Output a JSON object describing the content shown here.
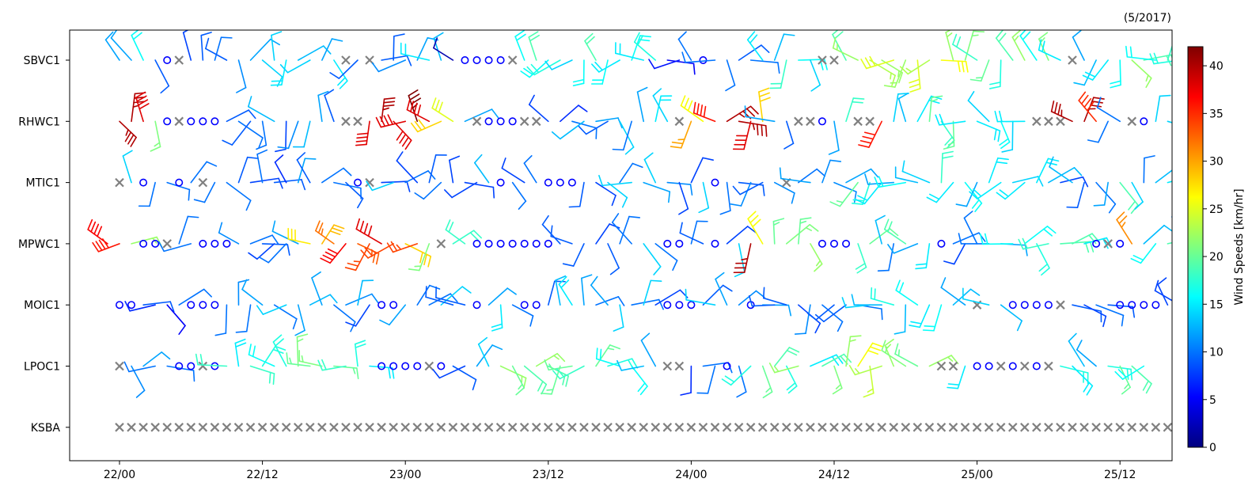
{
  "chart_data": {
    "type": "wind-barbs",
    "title_right": "(5/2017)",
    "stations": [
      "SBVC1",
      "RHWC1",
      "MTIC1",
      "MPWC1",
      "MOIC1",
      "LPOC1",
      "KSBA"
    ],
    "x_ticks": [
      "22/00",
      "22/12",
      "23/00",
      "23/12",
      "24/00",
      "24/12",
      "25/00",
      "25/12"
    ],
    "x_range_hours": [
      -4,
      88
    ],
    "time_step_hours": 1,
    "colorbar": {
      "label": "Wind Speeds [km/hr]",
      "ticks": [
        0,
        5,
        10,
        15,
        20,
        25,
        30,
        35,
        40
      ],
      "range": [
        0,
        42
      ],
      "colormap": "jet"
    },
    "legend_markers": {
      "calm": "circle",
      "missing": "x",
      "missing_color": "#808080"
    },
    "observations": {
      "SBVC1": {
        "start_hour": 0,
        "speeds": [
          12,
          12,
          16,
          9,
          0,
          -1,
          8,
          9,
          10,
          9,
          11,
          12,
          14,
          14,
          15,
          13,
          14,
          12,
          15,
          -1,
          9,
          -1,
          9,
          9,
          11,
          12,
          15,
          13,
          2,
          0,
          0,
          0,
          0,
          -1,
          16,
          19,
          16,
          17,
          14,
          16,
          19,
          16,
          15,
          16,
          15,
          17,
          5,
          6,
          10,
          0,
          10,
          10,
          9,
          10,
          15,
          13,
          18,
          16,
          14,
          -1,
          -1,
          19,
          22,
          23,
          22,
          25,
          22,
          25,
          23,
          26,
          22,
          21,
          18,
          20,
          17,
          19,
          22,
          16,
          21,
          15,
          -1,
          12,
          13,
          15,
          16,
          22,
          19,
          16,
          18,
          17,
          20,
          0,
          0,
          -1,
          -1,
          12,
          12,
          10
        ]
      },
      "RHWC1": {
        "start_hour": 0,
        "speeds": [
          40,
          40,
          38,
          21,
          0,
          -1,
          0,
          0,
          0,
          9,
          10,
          9,
          10,
          13,
          8,
          11,
          13,
          12,
          9,
          -1,
          -1,
          38,
          40,
          38,
          38,
          42,
          38,
          28,
          25,
          12,
          -1,
          0,
          0,
          0,
          -1,
          -1,
          8,
          7,
          10,
          13,
          12,
          9,
          14,
          10,
          12,
          15,
          14,
          -1,
          30,
          26,
          36,
          40,
          40,
          38,
          28,
          12,
          9,
          -1,
          -1,
          0,
          12,
          18,
          -1,
          -1,
          36,
          14,
          13,
          15,
          20,
          18,
          20,
          15,
          15,
          14,
          16,
          14,
          15,
          -1,
          -1,
          -1,
          40,
          40,
          35,
          10,
          10,
          -1,
          0,
          14,
          14,
          15,
          14,
          18,
          19,
          17,
          16,
          18,
          -1
        ]
      },
      "MTIC1": {
        "start_hour": 0,
        "speeds": [
          -1,
          14,
          0,
          10,
          10,
          0,
          10,
          -1,
          10,
          10,
          9,
          8,
          10,
          9,
          7,
          12,
          9,
          10,
          10,
          9,
          0,
          -1,
          8,
          14,
          10,
          8,
          9,
          10,
          8,
          8,
          8,
          13,
          0,
          10,
          8,
          10,
          0,
          0,
          0,
          9,
          8,
          14,
          10,
          14,
          12,
          14,
          11,
          8,
          8,
          14,
          0,
          10,
          9,
          11,
          9,
          11,
          -1,
          10,
          12,
          11,
          11,
          12,
          20,
          17,
          15,
          12,
          16,
          13,
          14,
          18,
          15,
          16,
          12,
          15,
          15,
          14,
          15,
          15,
          13,
          8,
          13,
          9,
          10,
          12,
          19,
          14,
          10,
          13,
          15,
          9,
          8,
          8,
          0,
          9,
          8,
          12,
          13,
          0
        ]
      },
      "MPWC1": {
        "start_hour": -1,
        "speeds": [
          37,
          36,
          22,
          0,
          0,
          -1,
          10,
          10,
          0,
          0,
          0,
          11,
          10,
          9,
          8,
          10,
          12,
          27,
          29,
          32,
          37,
          33,
          34,
          38,
          34,
          28,
          34,
          21,
          -1,
          18,
          18,
          0,
          0,
          0,
          0,
          0,
          0,
          0,
          9,
          9,
          9,
          8,
          9,
          10,
          10,
          14,
          10,
          0,
          0,
          10,
          9,
          0,
          8,
          14,
          40,
          26,
          20,
          21,
          20,
          22,
          0,
          0,
          0,
          18,
          20,
          13,
          10,
          19,
          12,
          15,
          0,
          10,
          8,
          10,
          10,
          12,
          16,
          16,
          17,
          18,
          19,
          19,
          15,
          0,
          -1,
          0,
          31,
          13,
          16,
          19,
          11,
          19,
          10,
          10,
          12,
          17,
          14,
          -1
        ]
      },
      "MOIC1": {
        "start_hour": 0,
        "speeds": [
          0,
          0,
          9,
          7,
          5,
          10,
          0,
          0,
          0,
          10,
          11,
          10,
          12,
          10,
          14,
          12,
          13,
          12,
          10,
          11,
          13,
          8,
          0,
          0,
          12,
          10,
          10,
          14,
          9,
          9,
          0,
          12,
          15,
          10,
          0,
          0,
          9,
          13,
          15,
          12,
          10,
          12,
          14,
          10,
          14,
          8,
          0,
          0,
          0,
          9,
          14,
          12,
          11,
          0,
          12,
          9,
          9,
          8,
          11,
          10,
          9,
          9,
          10,
          14,
          13,
          17,
          13,
          16,
          15,
          16,
          13,
          12,
          -1,
          14,
          13,
          0,
          0,
          0,
          0,
          -1,
          9,
          8,
          10,
          9,
          0,
          0,
          0,
          0,
          8,
          8,
          -1,
          -1
        ]
      },
      "LPOC1": {
        "start_hour": 0,
        "speeds": [
          -1,
          11,
          12,
          10,
          10,
          0,
          0,
          -1,
          0,
          18,
          15,
          18,
          17,
          16,
          17,
          21,
          20,
          21,
          20,
          18,
          17,
          15,
          0,
          0,
          0,
          0,
          -1,
          0,
          9,
          8,
          12,
          14,
          22,
          20,
          19,
          22,
          19,
          20,
          20,
          18,
          20,
          17,
          16,
          16,
          13,
          12,
          -1,
          -1,
          7,
          10,
          10,
          0,
          10,
          17,
          20,
          19,
          17,
          22,
          15,
          19,
          21,
          22,
          26,
          24,
          23,
          22,
          21,
          20,
          22,
          -1,
          -1,
          15,
          0,
          0,
          -1,
          0,
          -1,
          0,
          -1,
          17,
          15,
          13,
          12,
          17,
          20,
          19,
          16
        ]
      },
      "KSBA": {
        "start_hour": 0,
        "speeds": [
          -1,
          -1,
          -1,
          -1,
          -1,
          -1,
          -1,
          -1,
          -1,
          -1,
          -1,
          -1,
          -1,
          -1,
          -1,
          -1,
          -1,
          -1,
          -1,
          -1,
          -1,
          -1,
          -1,
          -1,
          -1,
          -1,
          -1,
          -1,
          -1,
          -1,
          -1,
          -1,
          -1,
          -1,
          -1,
          -1,
          -1,
          -1,
          -1,
          -1,
          -1,
          -1,
          -1,
          -1,
          -1,
          -1,
          -1,
          -1,
          -1,
          -1,
          -1,
          -1,
          -1,
          -1,
          -1,
          -1,
          -1,
          -1,
          -1,
          -1,
          -1,
          -1,
          -1,
          -1,
          -1,
          -1,
          -1,
          -1,
          -1,
          -1,
          -1,
          -1,
          -1,
          -1,
          -1,
          -1,
          -1,
          -1,
          -1,
          -1,
          -1,
          -1,
          -1,
          -1,
          -1,
          -1,
          -1,
          -1,
          -1,
          -1,
          -1,
          -1,
          -1,
          -1,
          -1,
          -1,
          -1
        ]
      }
    }
  }
}
